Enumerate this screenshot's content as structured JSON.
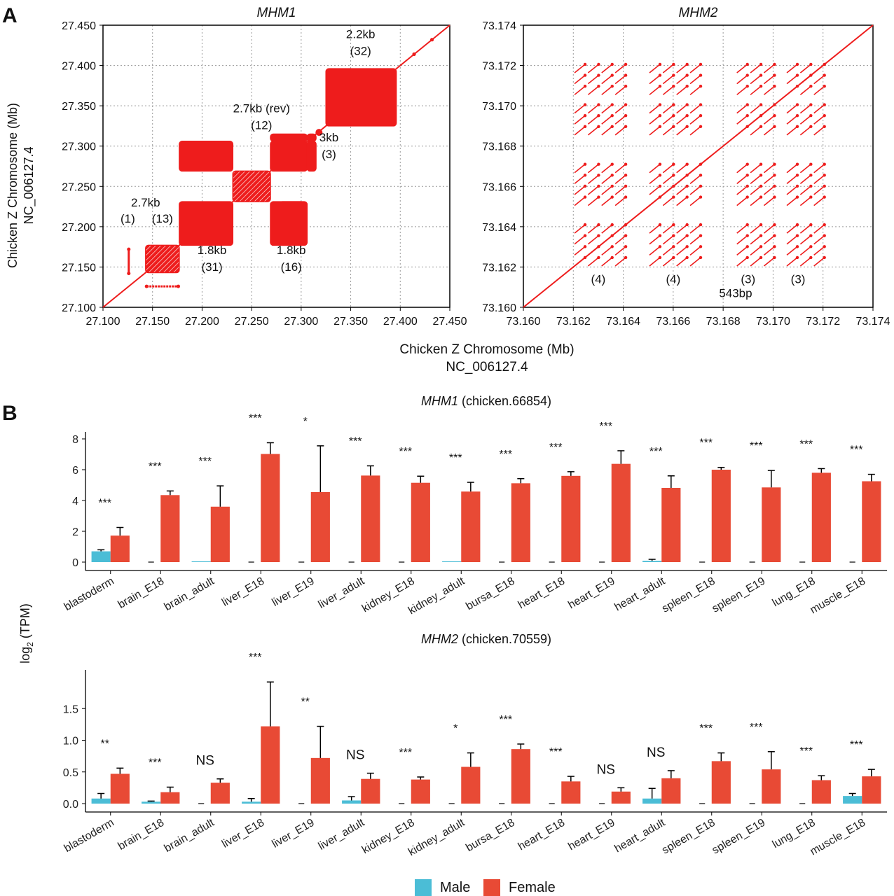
{
  "panel_labels": {
    "a": "A",
    "b": "B"
  },
  "colors": {
    "dot": "#ee1c1c",
    "male": "#4bbdd6",
    "female": "#e84a35",
    "grid": "#9a9a9a"
  },
  "dotplot_shared": {
    "xlabel": "Chicken Z Chromosome (Mb)",
    "xlabel2": "NC_006127.4",
    "ylabel": "Chicken Z Chromosome (Mb)",
    "ylabel2": "NC_006127.4"
  },
  "legend": {
    "male": "Male",
    "female": "Female"
  },
  "barplot_ylabel": {
    "main": "log",
    "sub": "2",
    "tail": " (TPM)"
  },
  "chart_data": [
    {
      "type": "scatter",
      "title": "MHM1",
      "xlim": [
        27.1,
        27.45
      ],
      "ylim": [
        27.1,
        27.45
      ],
      "xticks": [
        "27.100",
        "27.150",
        "27.200",
        "27.250",
        "27.300",
        "27.350",
        "27.400",
        "27.450"
      ],
      "yticks": [
        "27.100",
        "27.150",
        "27.200",
        "27.250",
        "27.300",
        "27.350",
        "27.400",
        "27.450"
      ],
      "grid": true,
      "diagonal": [
        [
          27.1,
          27.1
        ],
        [
          27.45,
          27.45
        ]
      ],
      "blocks": [
        {
          "x": [
            27.143,
            27.177
          ],
          "y": [
            27.143,
            27.177
          ],
          "style": "hatch"
        },
        {
          "x": [
            27.177,
            27.231
          ],
          "y": [
            27.177,
            27.231
          ],
          "style": "solid"
        },
        {
          "x": [
            27.177,
            27.231
          ],
          "y": [
            27.269,
            27.306
          ],
          "style": "solid"
        },
        {
          "x": [
            27.231,
            27.269
          ],
          "y": [
            27.231,
            27.269
          ],
          "style": "hatch"
        },
        {
          "x": [
            27.269,
            27.306
          ],
          "y": [
            27.177,
            27.231
          ],
          "style": "solid"
        },
        {
          "x": [
            27.269,
            27.306
          ],
          "y": [
            27.269,
            27.306
          ],
          "style": "solid"
        },
        {
          "x": [
            27.278,
            27.303
          ],
          "y": [
            27.177,
            27.231
          ],
          "style": "solid"
        },
        {
          "x": [
            27.306,
            27.315
          ],
          "y": [
            27.269,
            27.306
          ],
          "style": "solid"
        },
        {
          "x": [
            27.269,
            27.306
          ],
          "y": [
            27.306,
            27.315
          ],
          "style": "solid"
        },
        {
          "x": [
            27.306,
            27.315
          ],
          "y": [
            27.306,
            27.315
          ],
          "style": "solid"
        },
        {
          "x": [
            27.325,
            27.396
          ],
          "y": [
            27.325,
            27.396
          ],
          "style": "solid"
        }
      ],
      "dots": [
        [
          27.126,
          27.142
        ],
        [
          27.126,
          27.172
        ],
        [
          27.144,
          27.126
        ],
        [
          27.176,
          27.126
        ],
        [
          27.318,
          27.317
        ],
        [
          27.414,
          27.414
        ],
        [
          27.432,
          27.432
        ]
      ],
      "annotations": [
        {
          "text": "2.2kb",
          "x": 27.36,
          "y": 27.434
        },
        {
          "text": "(32)",
          "x": 27.36,
          "y": 27.413
        },
        {
          "text": "2.7kb (rev)",
          "x": 27.26,
          "y": 27.342
        },
        {
          "text": "(12)",
          "x": 27.26,
          "y": 27.321
        },
        {
          "text": "3kb",
          "x": 27.328,
          "y": 27.306
        },
        {
          "text": "(3)",
          "x": 27.328,
          "y": 27.285
        },
        {
          "text": "2.7kb",
          "x": 27.143,
          "y": 27.225
        },
        {
          "text": "(1)",
          "x": 27.125,
          "y": 27.205
        },
        {
          "text": "(13)",
          "x": 27.16,
          "y": 27.205
        },
        {
          "text": "1.8kb",
          "x": 27.21,
          "y": 27.166
        },
        {
          "text": "(31)",
          "x": 27.21,
          "y": 27.145
        },
        {
          "text": "1.8kb",
          "x": 27.29,
          "y": 27.166
        },
        {
          "text": "(16)",
          "x": 27.29,
          "y": 27.145
        }
      ]
    },
    {
      "type": "scatter",
      "title": "MHM2",
      "xlim": [
        73.16,
        73.174
      ],
      "ylim": [
        73.16,
        73.174
      ],
      "xticks": [
        "73.160",
        "73.162",
        "73.164",
        "73.166",
        "73.168",
        "73.170",
        "73.172",
        "73.174"
      ],
      "yticks": [
        "73.160",
        "73.162",
        "73.164",
        "73.166",
        "73.168",
        "73.170",
        "73.172",
        "73.174"
      ],
      "grid": true,
      "diagonal": [
        [
          73.16,
          73.16
        ],
        [
          73.174,
          73.174
        ]
      ],
      "repeat_starts": [
        73.162,
        73.165,
        73.1685,
        73.1705
      ],
      "repeat_unit_kb": 0.543,
      "annotations": [
        {
          "text": "(4)",
          "x": 73.163,
          "y": 73.1612
        },
        {
          "text": "(4)",
          "x": 73.166,
          "y": 73.1612
        },
        {
          "text": "(3)",
          "x": 73.169,
          "y": 73.1612
        },
        {
          "text": "(3)",
          "x": 73.171,
          "y": 73.1612
        },
        {
          "text": "543bp",
          "x": 73.1685,
          "y": 73.1605
        }
      ]
    },
    {
      "type": "bar",
      "title": "MHM1",
      "subtitle": " (chicken.66854)",
      "categories": [
        "blastoderm",
        "brain_E18",
        "brain_adult",
        "liver_E18",
        "liver_E19",
        "liver_adult",
        "kidney_E18",
        "kidney_adult",
        "bursa_E18",
        "heart_E18",
        "heart_E19",
        "heart_adult",
        "spleen_E18",
        "spleen_E19",
        "lung_E18",
        "muscle_E18"
      ],
      "ylim": [
        0,
        8
      ],
      "yticks": [
        "0",
        "2",
        "4",
        "6",
        "8"
      ],
      "series": [
        {
          "name": "Male",
          "values": [
            0.7,
            0,
            0.05,
            0,
            0,
            0,
            0,
            0.05,
            0,
            0,
            0,
            0.08,
            0,
            0,
            0,
            0
          ],
          "errors": [
            0.1,
            0,
            0,
            0,
            0,
            0,
            0,
            0,
            0,
            0,
            0,
            0.1,
            0,
            0,
            0,
            0
          ]
        },
        {
          "name": "Female",
          "values": [
            1.72,
            4.35,
            3.6,
            7.02,
            4.55,
            5.62,
            5.15,
            4.58,
            5.12,
            5.6,
            6.38,
            4.82,
            6.0,
            4.85,
            5.8,
            5.25
          ],
          "errors": [
            0.53,
            0.27,
            1.35,
            0.73,
            3.0,
            0.63,
            0.43,
            0.6,
            0.3,
            0.27,
            0.85,
            0.78,
            0.15,
            1.1,
            0.27,
            0.45
          ]
        }
      ],
      "significance": [
        "***",
        "***",
        "***",
        "***",
        "*",
        "***",
        "***",
        "***",
        "***",
        "***",
        "***",
        "***",
        "***",
        "***",
        "***",
        "***"
      ]
    },
    {
      "type": "bar",
      "title": "MHM2",
      "subtitle": " (chicken.70559)",
      "categories": [
        "blastoderm",
        "brain_E18",
        "brain_adult",
        "liver_E18",
        "liver_E19",
        "liver_adult",
        "kidney_E18",
        "kidney_adult",
        "bursa_E18",
        "heart_E18",
        "heart_E19",
        "heart_adult",
        "spleen_E18",
        "spleen_E19",
        "lung_E18",
        "muscle_E18"
      ],
      "ylim": [
        0,
        2.0
      ],
      "yticks": [
        "0.0",
        "0.5",
        "1.0",
        "1.5"
      ],
      "series": [
        {
          "name": "Male",
          "values": [
            0.08,
            0.03,
            0,
            0.03,
            0,
            0.05,
            0,
            0,
            0,
            0,
            0,
            0.08,
            0,
            0,
            0,
            0.12
          ],
          "errors": [
            0.08,
            0.01,
            0,
            0.05,
            0,
            0.06,
            0,
            0,
            0,
            0,
            0,
            0.16,
            0,
            0,
            0,
            0.04
          ]
        },
        {
          "name": "Female",
          "values": [
            0.47,
            0.18,
            0.33,
            1.22,
            0.72,
            0.39,
            0.38,
            0.58,
            0.86,
            0.35,
            0.19,
            0.4,
            0.67,
            0.54,
            0.37,
            0.43
          ],
          "errors": [
            0.09,
            0.08,
            0.06,
            0.7,
            0.5,
            0.09,
            0.04,
            0.22,
            0.08,
            0.08,
            0.06,
            0.12,
            0.13,
            0.28,
            0.07,
            0.11
          ]
        }
      ],
      "significance": [
        "**",
        "***",
        "NS",
        "***",
        "**",
        "NS",
        "***",
        "*",
        "***",
        "***",
        "NS",
        "NS",
        "***",
        "***",
        "***",
        "***"
      ]
    }
  ]
}
